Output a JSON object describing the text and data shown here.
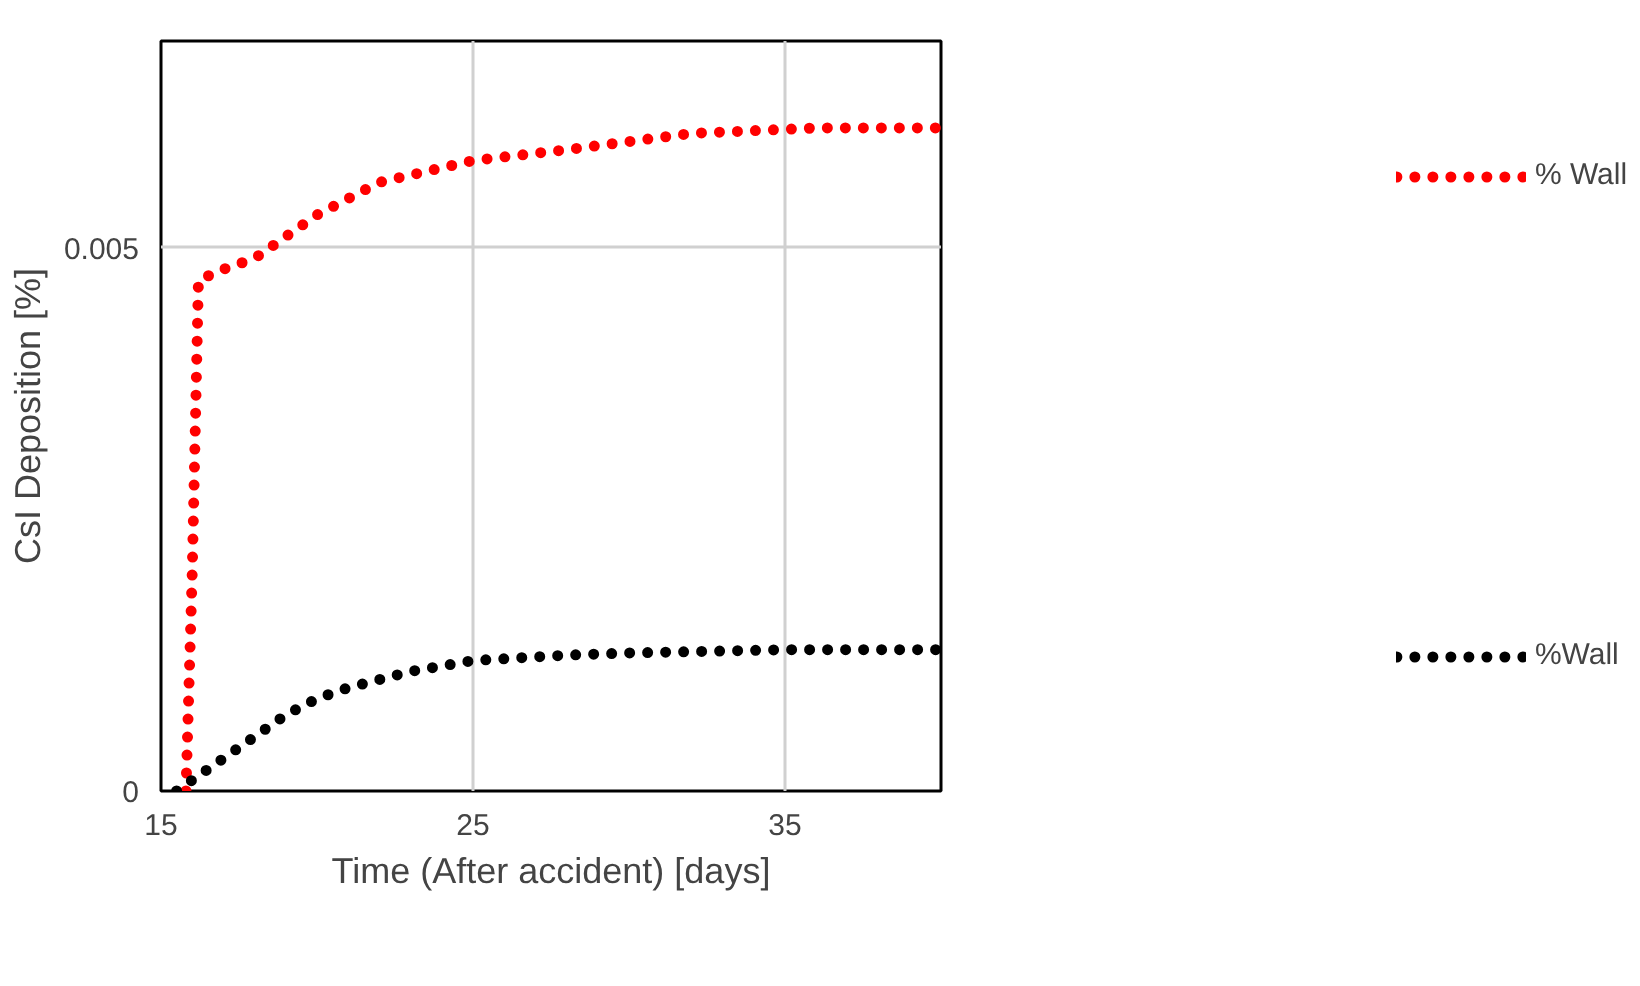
{
  "chart_data": {
    "type": "line",
    "xlabel": "Time (After accident) [days]",
    "ylabel": "CsI Deposition [%]",
    "xlim": [
      15,
      40
    ],
    "xticks": [
      15,
      25,
      35
    ],
    "ylim": [
      0,
      0.0069
    ],
    "yticks": [
      0,
      0.005
    ],
    "grid": true,
    "legend": "right",
    "line_style": "dotted",
    "marker": "none",
    "series": [
      {
        "name": "% Wall",
        "color": "#ff0000",
        "x": [
          15.8,
          16.0,
          16.2,
          17,
          18,
          20,
          22,
          25,
          28,
          32,
          36,
          40
        ],
        "values": [
          0,
          0.002,
          0.0047,
          0.0048,
          0.0049,
          0.0053,
          0.0056,
          0.0058,
          0.0059,
          0.00605,
          0.0061,
          0.0061
        ]
      },
      {
        "name": "%Wall",
        "color": "#000000",
        "x": [
          15.5,
          16,
          17,
          18,
          19,
          20,
          21,
          23,
          25,
          28,
          30,
          35,
          40
        ],
        "values": [
          0,
          0.0001,
          0.0003,
          0.0005,
          0.0007,
          0.00085,
          0.00095,
          0.0011,
          0.0012,
          0.00125,
          0.00127,
          0.0013,
          0.0013
        ]
      }
    ]
  }
}
